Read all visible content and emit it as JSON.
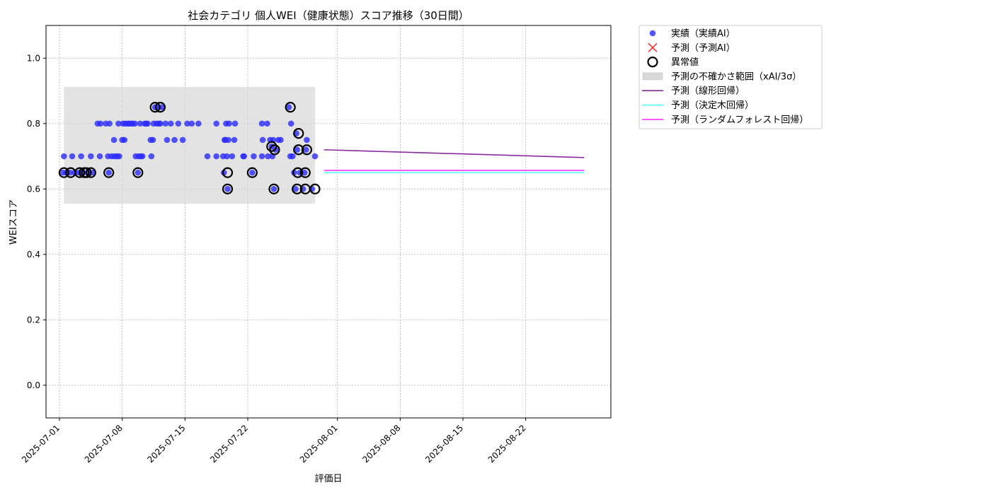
{
  "chart_data": {
    "type": "scatter",
    "title": "社会カテゴリ 個人WEI（健康状態）スコア推移（30日間）",
    "xlabel": "評価日",
    "ylabel": "WEIスコア",
    "xlim": [
      "2025-06-29T12:00",
      "2025-08-31T12:00"
    ],
    "ylim": [
      -0.1,
      1.1
    ],
    "grid": true,
    "legend_position": "outside-right-top",
    "x_ticks": [
      "2025-07-01",
      "2025-07-08",
      "2025-07-15",
      "2025-07-22",
      "2025-08-01",
      "2025-08-08",
      "2025-08-15",
      "2025-08-22"
    ],
    "y_ticks": [
      0.0,
      0.2,
      0.4,
      0.6,
      0.8,
      1.0
    ],
    "y_tick_labels": [
      "0.0",
      "0.2",
      "0.4",
      "0.6",
      "0.8",
      "1.0"
    ],
    "legend": [
      {
        "label": "実績（実績AI）",
        "kind": "dot",
        "color": "#2b2bff"
      },
      {
        "label": "予測（予測AI）",
        "kind": "x",
        "color": "#ff3333"
      },
      {
        "label": "異常値",
        "kind": "ring",
        "color": "#000000"
      },
      {
        "label": "予測の不確かさ範囲（xAI/3σ）",
        "kind": "band",
        "color": "#d9d9d9"
      },
      {
        "label": "予測（線形回帰）",
        "kind": "line",
        "color": "#8b2a9e"
      },
      {
        "label": "予測（決定木回帰）",
        "kind": "line",
        "color": "#4dffff"
      },
      {
        "label": "予測（ランダムフォレスト回帰）",
        "kind": "line",
        "color": "#ff33ff"
      }
    ],
    "uncertainty_band": {
      "x": [
        "2025-07-01T12:00",
        "2025-07-29T12:00"
      ],
      "y": [
        0.555,
        0.912
      ],
      "color": "#d9d9d9"
    },
    "series": [
      {
        "name": "実績（実績AI）",
        "color": "#2b2bff",
        "points": [
          [
            "2025-07-01T09:00",
            0.65
          ],
          [
            "2025-07-01T12:00",
            0.7
          ],
          [
            "2025-07-01T18:00",
            0.65
          ],
          [
            "2025-07-02T04:00",
            0.65
          ],
          [
            "2025-07-02T10:00",
            0.7
          ],
          [
            "2025-07-02T16:00",
            0.65
          ],
          [
            "2025-07-03T04:00",
            0.65
          ],
          [
            "2025-07-03T10:00",
            0.7
          ],
          [
            "2025-07-03T16:00",
            0.65
          ],
          [
            "2025-07-04T06:00",
            0.65
          ],
          [
            "2025-07-04T12:00",
            0.7
          ],
          [
            "2025-07-04T18:00",
            0.65
          ],
          [
            "2025-07-05T06:00",
            0.8
          ],
          [
            "2025-07-05T12:00",
            0.7
          ],
          [
            "2025-07-05T14:00",
            0.8
          ],
          [
            "2025-07-06T04:00",
            0.8
          ],
          [
            "2025-07-06T10:00",
            0.7
          ],
          [
            "2025-07-06T12:00",
            0.65
          ],
          [
            "2025-07-06T14:00",
            0.8
          ],
          [
            "2025-07-06T20:00",
            0.7
          ],
          [
            "2025-07-07T02:00",
            0.75
          ],
          [
            "2025-07-07T04:00",
            0.7
          ],
          [
            "2025-07-07T10:00",
            0.7
          ],
          [
            "2025-07-07T14:00",
            0.8
          ],
          [
            "2025-07-07T16:00",
            0.7
          ],
          [
            "2025-07-08T00:00",
            0.75
          ],
          [
            "2025-07-08T02:00",
            0.8
          ],
          [
            "2025-07-08T06:00",
            0.75
          ],
          [
            "2025-07-08T08:00",
            0.8
          ],
          [
            "2025-07-08T14:00",
            0.8
          ],
          [
            "2025-07-08T18:00",
            0.8
          ],
          [
            "2025-07-09T00:00",
            0.8
          ],
          [
            "2025-07-09T04:00",
            0.8
          ],
          [
            "2025-07-09T10:00",
            0.8
          ],
          [
            "2025-07-09T12:00",
            0.7
          ],
          [
            "2025-07-09T18:00",
            0.65
          ],
          [
            "2025-07-09T20:00",
            0.7
          ],
          [
            "2025-07-10T00:00",
            0.8
          ],
          [
            "2025-07-10T02:00",
            0.7
          ],
          [
            "2025-07-10T06:00",
            0.7
          ],
          [
            "2025-07-10T12:00",
            0.8
          ],
          [
            "2025-07-10T16:00",
            0.8
          ],
          [
            "2025-07-10T20:00",
            0.8
          ],
          [
            "2025-07-11T04:00",
            0.75
          ],
          [
            "2025-07-11T06:00",
            0.7
          ],
          [
            "2025-07-11T10:00",
            0.75
          ],
          [
            "2025-07-11T12:00",
            0.8
          ],
          [
            "2025-07-11T16:00",
            0.85
          ],
          [
            "2025-07-11T20:00",
            0.8
          ],
          [
            "2025-07-12T00:00",
            0.85
          ],
          [
            "2025-07-12T02:00",
            0.8
          ],
          [
            "2025-07-12T06:00",
            0.8
          ],
          [
            "2025-07-12T10:00",
            0.85
          ],
          [
            "2025-07-12T20:00",
            0.8
          ],
          [
            "2025-07-13T00:00",
            0.75
          ],
          [
            "2025-07-13T10:00",
            0.8
          ],
          [
            "2025-07-13T20:00",
            0.75
          ],
          [
            "2025-07-14T06:00",
            0.8
          ],
          [
            "2025-07-14T18:00",
            0.75
          ],
          [
            "2025-07-15T06:00",
            0.8
          ],
          [
            "2025-07-15T18:00",
            0.8
          ],
          [
            "2025-07-16T12:00",
            0.8
          ],
          [
            "2025-07-17T12:00",
            0.7
          ],
          [
            "2025-07-18T12:00",
            0.8
          ],
          [
            "2025-07-18T12:00",
            0.7
          ],
          [
            "2025-07-19T06:00",
            0.7
          ],
          [
            "2025-07-19T08:00",
            0.65
          ],
          [
            "2025-07-19T10:00",
            0.75
          ],
          [
            "2025-07-19T12:00",
            0.75
          ],
          [
            "2025-07-19T14:00",
            0.8
          ],
          [
            "2025-07-19T16:00",
            0.7
          ],
          [
            "2025-07-19T18:00",
            0.6
          ],
          [
            "2025-07-19T20:00",
            0.75
          ],
          [
            "2025-07-19T22:00",
            0.8
          ],
          [
            "2025-07-20T06:00",
            0.7
          ],
          [
            "2025-07-20T12:00",
            0.75
          ],
          [
            "2025-07-20T14:00",
            0.8
          ],
          [
            "2025-07-21T12:00",
            0.7
          ],
          [
            "2025-07-21T14:00",
            0.7
          ],
          [
            "2025-07-22T12:00",
            0.65
          ],
          [
            "2025-07-22T16:00",
            0.7
          ],
          [
            "2025-07-23T14:00",
            0.8
          ],
          [
            "2025-07-23T14:00",
            0.7
          ],
          [
            "2025-07-23T16:00",
            0.75
          ],
          [
            "2025-07-24T04:00",
            0.8
          ],
          [
            "2025-07-24T06:00",
            0.7
          ],
          [
            "2025-07-24T12:00",
            0.75
          ],
          [
            "2025-07-24T16:00",
            0.73
          ],
          [
            "2025-07-24T18:00",
            0.7
          ],
          [
            "2025-07-24T20:00",
            0.75
          ],
          [
            "2025-07-24T22:00",
            0.6
          ],
          [
            "2025-07-25T02:00",
            0.72
          ],
          [
            "2025-07-25T10:00",
            0.75
          ],
          [
            "2025-07-25T16:00",
            0.75
          ],
          [
            "2025-07-26T14:00",
            0.85
          ],
          [
            "2025-07-26T18:00",
            0.7
          ],
          [
            "2025-07-26T20:00",
            0.8
          ],
          [
            "2025-07-27T00:00",
            0.7
          ],
          [
            "2025-07-27T04:00",
            0.65
          ],
          [
            "2025-07-27T08:00",
            0.6
          ],
          [
            "2025-07-27T10:00",
            0.77
          ],
          [
            "2025-07-27T12:00",
            0.72
          ],
          [
            "2025-07-27T20:00",
            0.65
          ],
          [
            "2025-07-28T04:00",
            0.6
          ],
          [
            "2025-07-28T08:00",
            0.65
          ],
          [
            "2025-07-28T12:00",
            0.72
          ],
          [
            "2025-07-28T14:00",
            0.75
          ],
          [
            "2025-07-29T04:00",
            0.6
          ],
          [
            "2025-07-29T12:00",
            0.7
          ]
        ]
      },
      {
        "name": "異常値",
        "color": "#000000",
        "points": [
          [
            "2025-07-01T12:00",
            0.65
          ],
          [
            "2025-07-02T06:00",
            0.65
          ],
          [
            "2025-07-03T06:00",
            0.65
          ],
          [
            "2025-07-03T18:00",
            0.65
          ],
          [
            "2025-07-04T00:00",
            0.65
          ],
          [
            "2025-07-04T12:00",
            0.65
          ],
          [
            "2025-07-06T12:00",
            0.65
          ],
          [
            "2025-07-09T18:00",
            0.65
          ],
          [
            "2025-07-11T16:00",
            0.85
          ],
          [
            "2025-07-12T06:00",
            0.85
          ],
          [
            "2025-07-19T18:00",
            0.65
          ],
          [
            "2025-07-19T18:00",
            0.6
          ],
          [
            "2025-07-22T12:00",
            0.65
          ],
          [
            "2025-07-24T16:00",
            0.73
          ],
          [
            "2025-07-24T22:00",
            0.6
          ],
          [
            "2025-07-25T00:00",
            0.72
          ],
          [
            "2025-07-26T18:00",
            0.85
          ],
          [
            "2025-07-27T16:00",
            0.77
          ],
          [
            "2025-07-27T16:00",
            0.72
          ],
          [
            "2025-07-27T14:00",
            0.65
          ],
          [
            "2025-07-27T12:00",
            0.6
          ],
          [
            "2025-07-28T10:00",
            0.65
          ],
          [
            "2025-07-28T10:00",
            0.6
          ],
          [
            "2025-07-28T14:00",
            0.72
          ],
          [
            "2025-07-29T12:00",
            0.6
          ]
        ]
      },
      {
        "name": "予測（線形回帰）",
        "color": "#8b2a9e",
        "points": [
          [
            "2025-07-30T12:00",
            0.72
          ],
          [
            "2025-08-28T12:00",
            0.696
          ]
        ]
      },
      {
        "name": "予測（決定木回帰）",
        "color": "#4dffff",
        "points": [
          [
            "2025-07-30T12:00",
            0.65
          ],
          [
            "2025-08-28T12:00",
            0.65
          ]
        ]
      },
      {
        "name": "予測（ランダムフォレスト回帰）",
        "color": "#ff33ff",
        "points": [
          [
            "2025-07-30T12:00",
            0.657
          ],
          [
            "2025-08-28T12:00",
            0.657
          ]
        ]
      }
    ]
  }
}
